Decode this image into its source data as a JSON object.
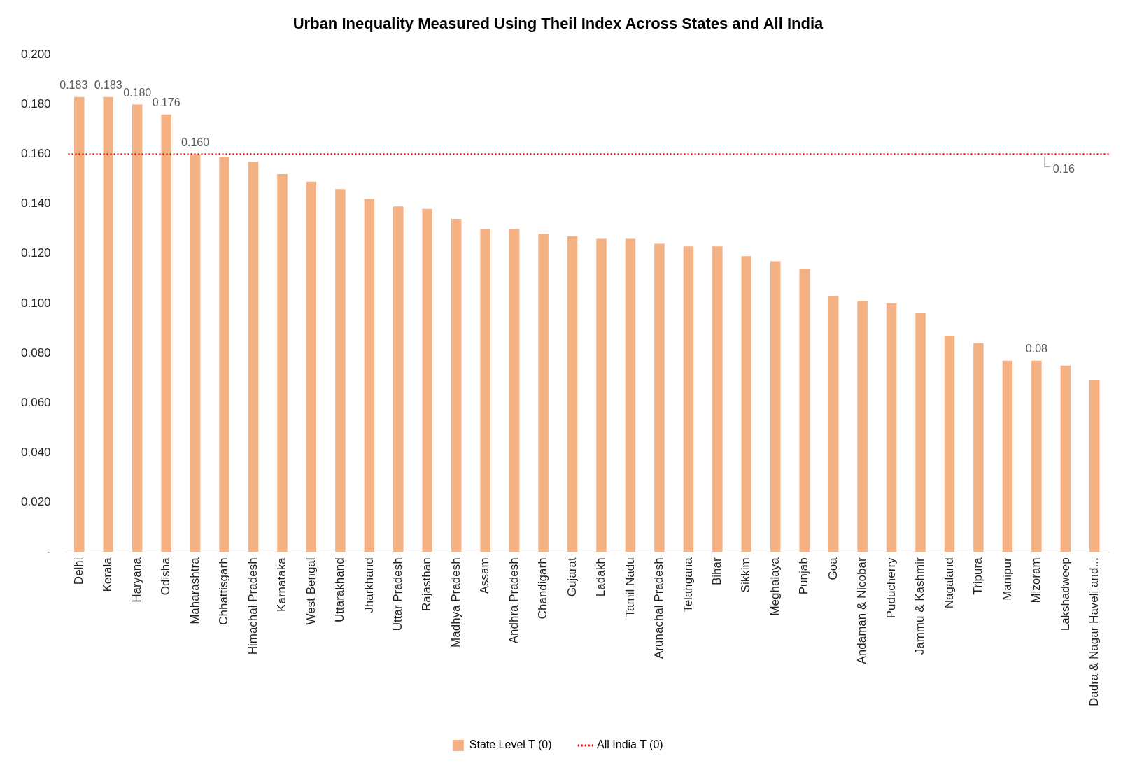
{
  "chart_data": {
    "type": "bar",
    "title": "Urban Inequality Measured Using Theil Index Across States and All India",
    "categories": [
      "Delhi",
      "Kerala",
      "Haryana",
      "Odisha",
      "Maharashtra",
      "Chhattisgarh",
      "Himachal Pradesh",
      "Karnataka",
      "West Bengal",
      "Uttarakhand",
      "Jharkhand",
      "Uttar Pradesh",
      "Rajasthan",
      "Madhya Pradesh",
      "Assam",
      "Andhra Pradesh",
      "Chandigarh",
      "Gujarat",
      "Ladakh",
      "Tamil Nadu",
      "Arunachal Pradesh",
      "Telangana",
      "Bihar",
      "Sikkim",
      "Meghalaya",
      "Punjab",
      "Goa",
      "Andaman & Nicobar",
      "Puducherry",
      "Jammu & Kashmir",
      "Nagaland",
      "Tripura",
      "Manipur",
      "Mizoram",
      "Lakshadweep",
      "Dadra & Nagar Haveli and..."
    ],
    "series": [
      {
        "name": "State Level T (0)",
        "color": "#f4b183",
        "values": [
          0.183,
          0.183,
          0.18,
          0.176,
          0.16,
          0.159,
          0.157,
          0.152,
          0.149,
          0.146,
          0.142,
          0.139,
          0.138,
          0.134,
          0.13,
          0.13,
          0.128,
          0.127,
          0.126,
          0.126,
          0.124,
          0.123,
          0.123,
          0.119,
          0.117,
          0.114,
          0.103,
          0.101,
          0.1,
          0.096,
          0.087,
          0.084,
          0.077,
          0.077,
          0.075,
          0.069
        ],
        "value_labels": [
          "0.183",
          "0.183",
          "0.180",
          "0.176",
          "0.160",
          null,
          null,
          null,
          null,
          null,
          null,
          null,
          null,
          null,
          null,
          null,
          null,
          null,
          null,
          null,
          null,
          null,
          null,
          null,
          null,
          null,
          null,
          null,
          null,
          null,
          null,
          null,
          null,
          "0.08",
          null,
          null
        ]
      }
    ],
    "ylim": [
      0,
      0.2
    ],
    "yticks": [
      {
        "value": 0,
        "label": "-"
      },
      {
        "value": 0.02,
        "label": "0.020"
      },
      {
        "value": 0.04,
        "label": "0.040"
      },
      {
        "value": 0.06,
        "label": "0.060"
      },
      {
        "value": 0.08,
        "label": "0.080"
      },
      {
        "value": 0.1,
        "label": "0.100"
      },
      {
        "value": 0.12,
        "label": "0.120"
      },
      {
        "value": 0.14,
        "label": "0.140"
      },
      {
        "value": 0.16,
        "label": "0.160"
      },
      {
        "value": 0.18,
        "label": "0.180"
      },
      {
        "value": 0.2,
        "label": "0.200"
      }
    ],
    "ref_lines": [
      {
        "axis": "y",
        "value": 0.16,
        "label": "All India T (0)",
        "color": "#ff0000",
        "line_style": "dotted"
      }
    ],
    "annotations": [
      {
        "text": "0.16",
        "x": "Lakshadweep",
        "y": 0.16
      }
    ],
    "grid": false,
    "legend": "bottom"
  }
}
